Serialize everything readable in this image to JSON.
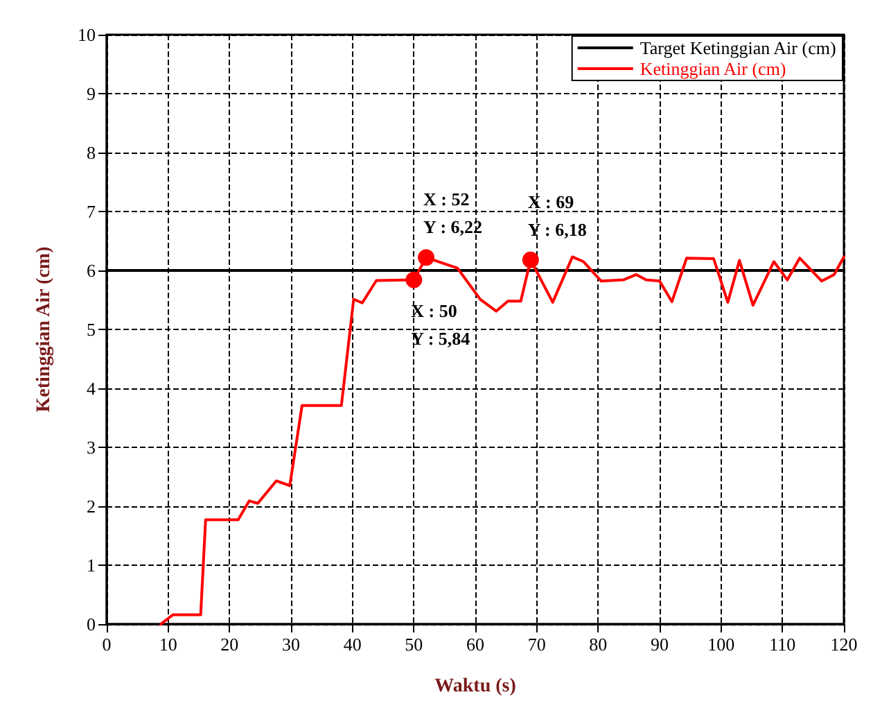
{
  "chart_data": {
    "type": "line",
    "xlabel": "Waktu (s)",
    "ylabel": "Ketinggian Air (cm)",
    "xlim": [
      0,
      120
    ],
    "xticks": [
      0,
      10,
      20,
      30,
      40,
      50,
      60,
      70,
      80,
      90,
      100,
      110,
      120
    ],
    "ylim": [
      0,
      10
    ],
    "yticks": [
      0,
      1,
      2,
      3,
      4,
      5,
      6,
      7,
      8,
      9,
      10
    ],
    "grid": true,
    "legend": "top right",
    "marker": "none",
    "line_style": "solid",
    "series": [
      {
        "name": "Target Ketinggian Air (cm)",
        "color": "#000000",
        "x": [
          0,
          120
        ],
        "values": [
          6,
          6
        ]
      },
      {
        "name": "Ketinggian Air (cm)",
        "color": "#ff0000",
        "x": [
          8.8,
          10.8,
          15.3,
          16.1,
          21.4,
          23.2,
          24.6,
          27.6,
          29.8,
          31.8,
          38.2,
          40.2,
          41.6,
          43.9,
          50,
          52,
          57.1,
          60.8,
          63.4,
          65.3,
          67.4,
          69,
          72.6,
          75.8,
          77.6,
          80.5,
          84.1,
          86.2,
          87.8,
          90,
          92,
          94.4,
          98.8,
          101.1,
          103,
          105.2,
          108.6,
          110.8,
          112.8,
          116.4,
          118.4,
          120
        ],
        "values": [
          0,
          0.16,
          0.16,
          1.77,
          1.77,
          2.09,
          2.05,
          2.43,
          2.35,
          3.71,
          3.71,
          5.51,
          5.45,
          5.83,
          5.84,
          6.22,
          6.04,
          5.51,
          5.31,
          5.48,
          5.48,
          6.18,
          5.46,
          6.23,
          6.15,
          5.82,
          5.84,
          5.93,
          5.84,
          5.82,
          5.47,
          6.21,
          6.2,
          5.46,
          6.17,
          5.41,
          6.15,
          5.84,
          6.21,
          5.82,
          5.93,
          6.23
        ]
      }
    ],
    "annotations": [
      {
        "text": "X : 52\nY : 6,22",
        "x": 52,
        "y": 6.22
      },
      {
        "text": "X : 50\nY : 5,84",
        "x": 50,
        "y": 5.84
      },
      {
        "text": "X : 69\nY : 6,18",
        "x": 69,
        "y": 6.18
      }
    ]
  }
}
